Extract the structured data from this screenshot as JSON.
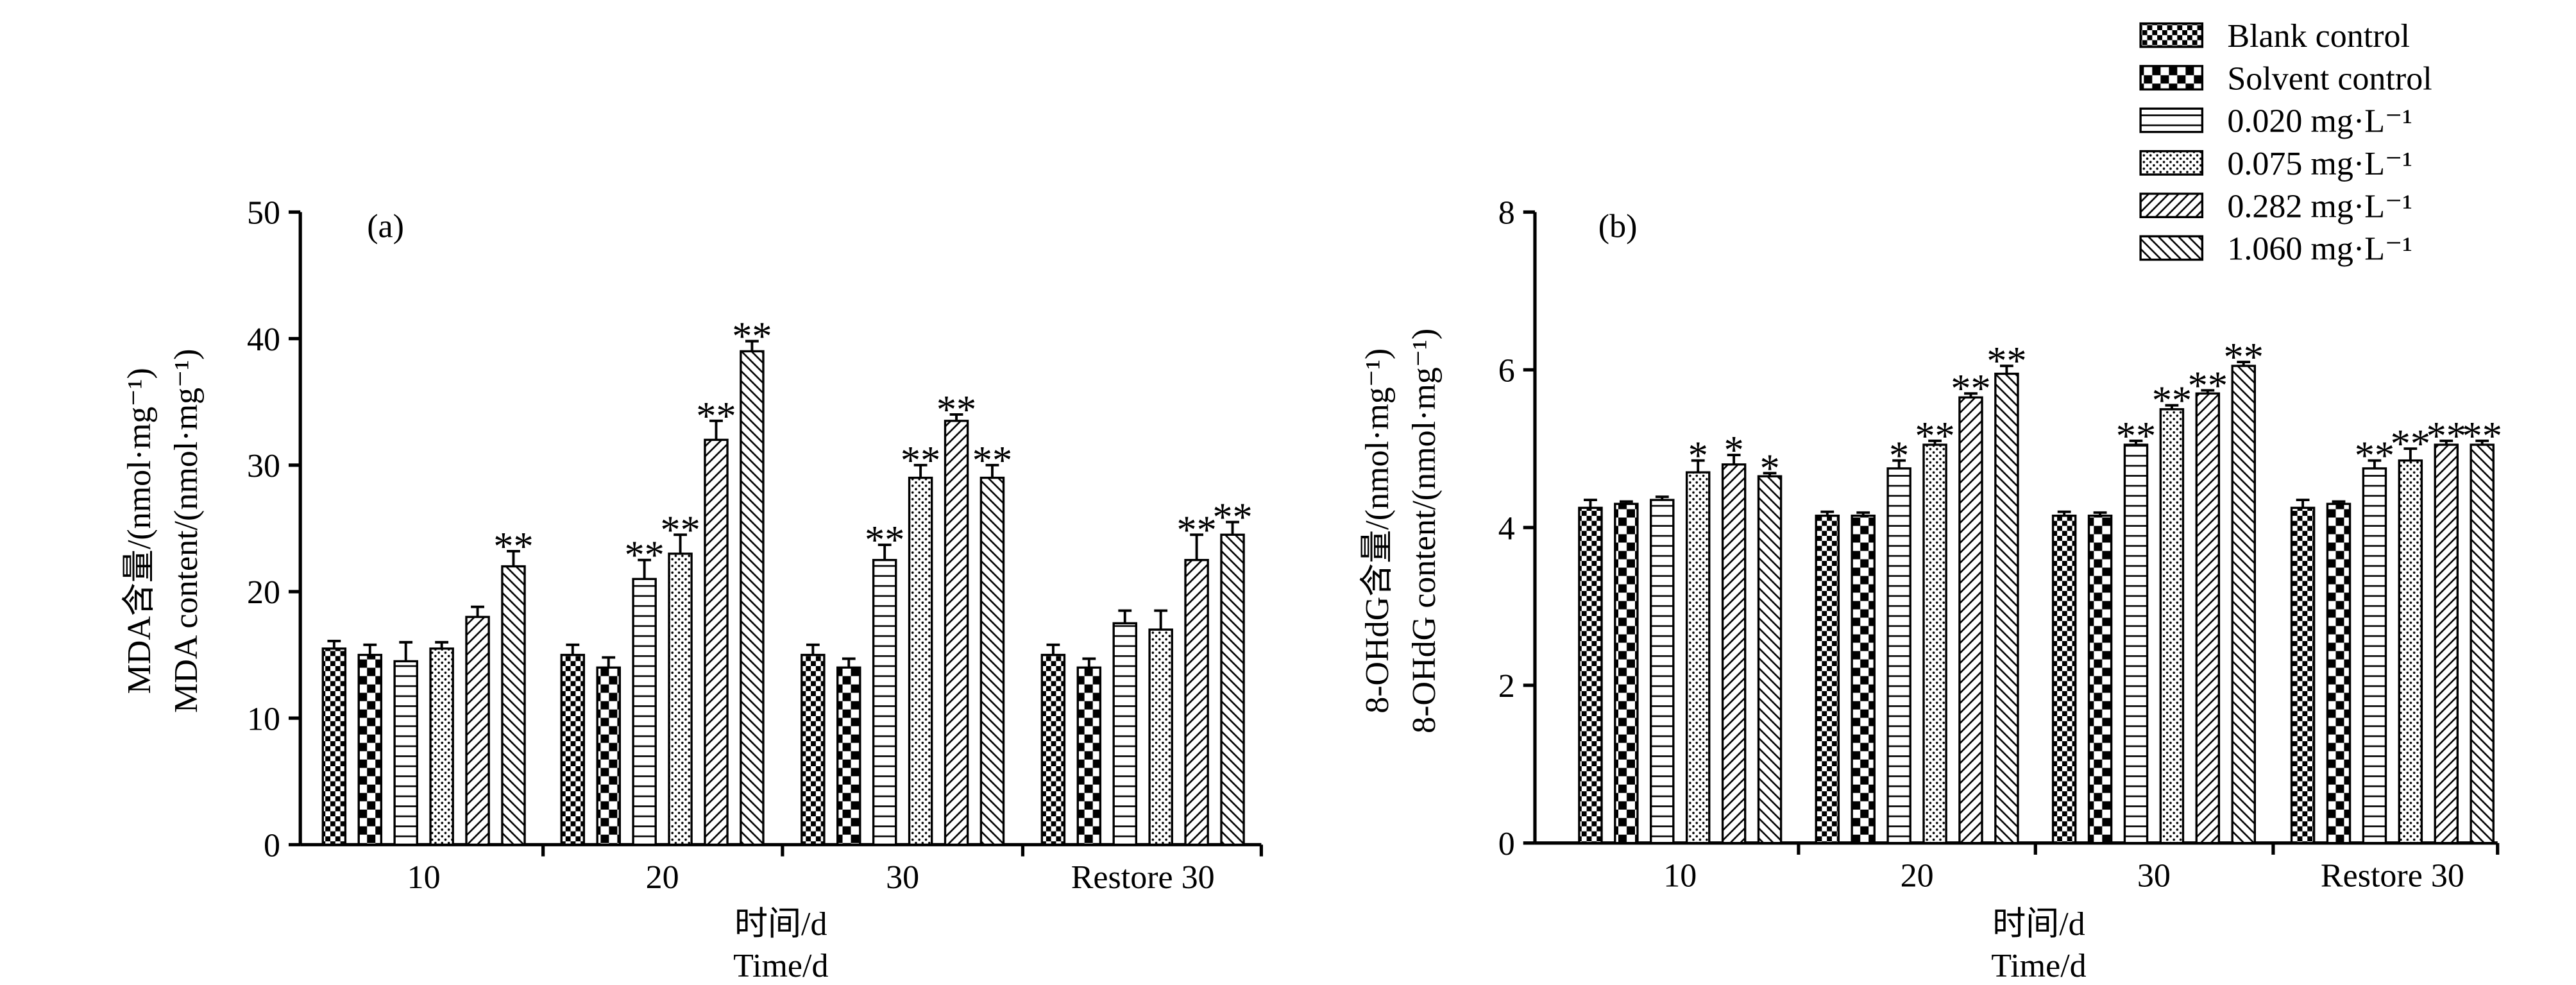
{
  "colors": {
    "ink": "#000000",
    "background": "#ffffff"
  },
  "legend": [
    {
      "label": "Blank control",
      "pattern": "checker-fine"
    },
    {
      "label": "Solvent control",
      "pattern": "checker-bold"
    },
    {
      "label": "0.020 mg·L⁻¹",
      "pattern": "horizontal-lines"
    },
    {
      "label": "0.075 mg·L⁻¹",
      "pattern": "dots"
    },
    {
      "label": "0.282 mg·L⁻¹",
      "pattern": "diagonal-fwd"
    },
    {
      "label": "1.060 mg·L⁻¹",
      "pattern": "diagonal-back"
    }
  ],
  "chart_data": [
    {
      "type": "bar",
      "panel_label": "(a)",
      "categories": [
        "10",
        "20",
        "30",
        "Restore 30"
      ],
      "ylabel_cn": "MDA含量/(nmol·mg⁻¹)",
      "ylabel_en": "MDA content/(nmol·mg⁻¹)",
      "xlabel_cn": "时间/d",
      "xlabel_en": "Time/d",
      "ylim": [
        0,
        50
      ],
      "yticks": [
        0,
        10,
        20,
        30,
        40,
        50
      ],
      "series": [
        {
          "name": "Blank control",
          "values": [
            15.5,
            15.0,
            15.0,
            15.0
          ],
          "errors": [
            0.6,
            0.8,
            0.8,
            0.8
          ],
          "sig": [
            "",
            "",
            "",
            ""
          ]
        },
        {
          "name": "Solvent control",
          "values": [
            15.0,
            14.0,
            14.0,
            14.0
          ],
          "errors": [
            0.8,
            0.8,
            0.7,
            0.7
          ],
          "sig": [
            "",
            "",
            "",
            ""
          ]
        },
        {
          "name": "0.020 mg·L⁻¹",
          "values": [
            14.5,
            21.0,
            22.5,
            17.5
          ],
          "errors": [
            1.5,
            1.5,
            1.2,
            1.0
          ],
          "sig": [
            "",
            "**",
            "**",
            ""
          ]
        },
        {
          "name": "0.075 mg·L⁻¹",
          "values": [
            15.5,
            23.0,
            29.0,
            17.0
          ],
          "errors": [
            0.5,
            1.5,
            1.0,
            1.5
          ],
          "sig": [
            "",
            "**",
            "**",
            ""
          ]
        },
        {
          "name": "0.282 mg·L⁻¹",
          "values": [
            18.0,
            32.0,
            33.5,
            22.5
          ],
          "errors": [
            0.8,
            1.5,
            0.5,
            2.0
          ],
          "sig": [
            "",
            "**",
            "**",
            "**"
          ]
        },
        {
          "name": "1.060 mg·L⁻¹",
          "values": [
            22.0,
            39.0,
            29.0,
            24.5
          ],
          "errors": [
            1.2,
            0.8,
            1.0,
            1.0
          ],
          "sig": [
            "**",
            "**",
            "**",
            "**"
          ]
        }
      ]
    },
    {
      "type": "bar",
      "panel_label": "(b)",
      "categories": [
        "10",
        "20",
        "30",
        "Restore 30"
      ],
      "ylabel_cn": "8-OHdG含量/(nmol·mg⁻¹)",
      "ylabel_en": "8-OHdG content/(nmol·mg⁻¹)",
      "xlabel_cn": "时间/d",
      "xlabel_en": "Time/d",
      "ylim": [
        0,
        8
      ],
      "yticks": [
        0,
        2,
        4,
        6,
        8
      ],
      "series": [
        {
          "name": "Blank control",
          "values": [
            4.25,
            4.15,
            4.15,
            4.25
          ],
          "errors": [
            0.1,
            0.05,
            0.05,
            0.1
          ],
          "sig": [
            "",
            "",
            "",
            ""
          ]
        },
        {
          "name": "Solvent control",
          "values": [
            4.3,
            4.15,
            4.15,
            4.3
          ],
          "errors": [
            0.03,
            0.04,
            0.04,
            0.03
          ],
          "sig": [
            "",
            "",
            "",
            ""
          ]
        },
        {
          "name": "0.020 mg·L⁻¹",
          "values": [
            4.35,
            4.75,
            5.05,
            4.75
          ],
          "errors": [
            0.04,
            0.1,
            0.05,
            0.1
          ],
          "sig": [
            "",
            "*",
            "**",
            "**"
          ]
        },
        {
          "name": "0.075 mg·L⁻¹",
          "values": [
            4.7,
            5.05,
            5.5,
            4.85
          ],
          "errors": [
            0.15,
            0.05,
            0.05,
            0.15
          ],
          "sig": [
            "*",
            "**",
            "**",
            "**"
          ]
        },
        {
          "name": "0.282 mg·L⁻¹",
          "values": [
            4.8,
            5.65,
            5.7,
            5.05
          ],
          "errors": [
            0.12,
            0.05,
            0.04,
            0.05
          ],
          "sig": [
            "*",
            "**",
            "**",
            "**"
          ]
        },
        {
          "name": "1.060 mg·L⁻¹",
          "values": [
            4.65,
            5.95,
            6.05,
            5.05
          ],
          "errors": [
            0.04,
            0.1,
            0.05,
            0.05
          ],
          "sig": [
            "*",
            "**",
            "**",
            "**"
          ]
        }
      ]
    }
  ]
}
